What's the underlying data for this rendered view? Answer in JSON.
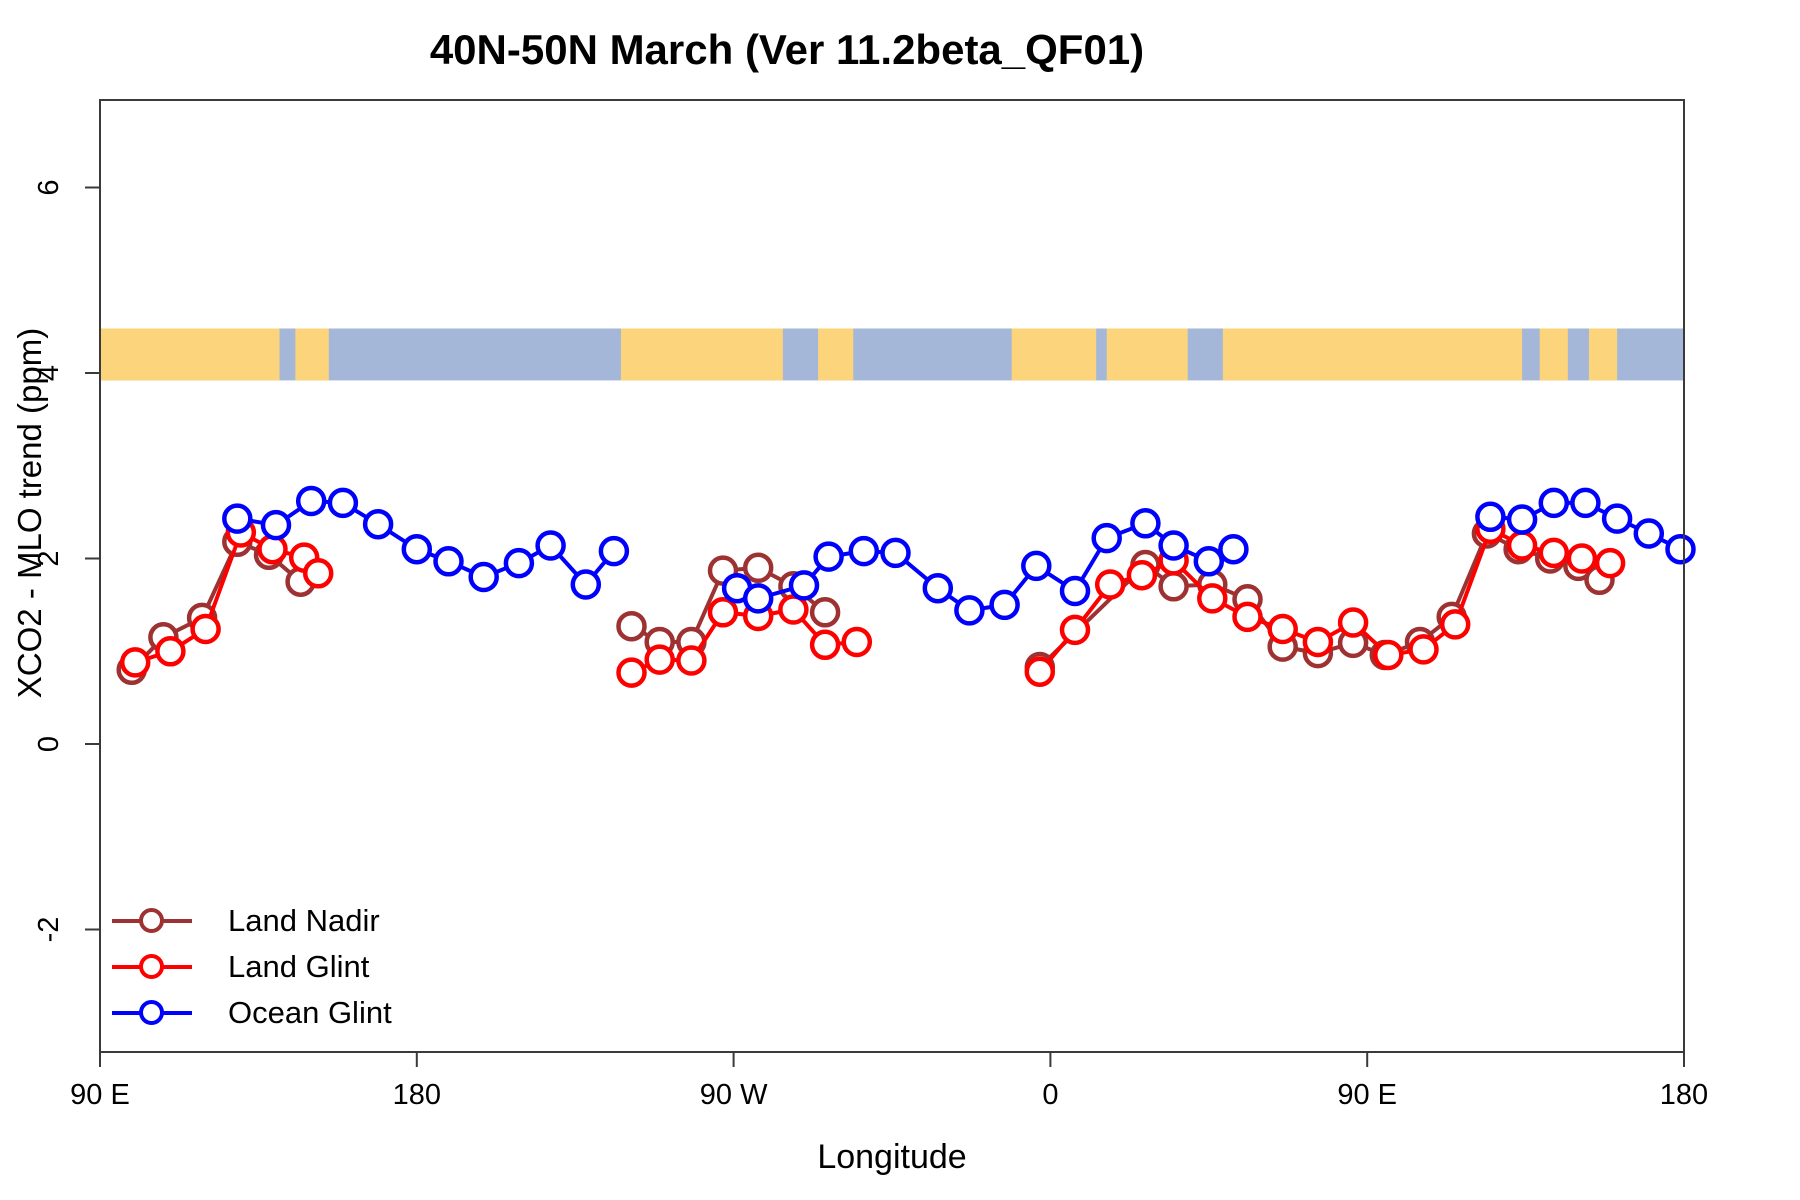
{
  "title": "40N-50N March (Ver 11.2beta_QF01)",
  "chart_data": {
    "type": "line",
    "title": "40N-50N March (Ver 11.2beta_QF01)",
    "xlabel": "Longitude",
    "ylabel": "XCO2 - MLO trend (ppm)",
    "grid": false,
    "legend_position": "bottom-left-inside",
    "x_axis": {
      "range_unwrapped_deg": [
        90,
        540
      ],
      "ticks": [
        {
          "lon": 90,
          "label": "90 E"
        },
        {
          "lon": 180,
          "label": "180"
        },
        {
          "lon": 270,
          "label": "90 W"
        },
        {
          "lon": 360,
          "label": "0"
        },
        {
          "lon": 450,
          "label": "90 E"
        },
        {
          "lon": 540,
          "label": "180"
        }
      ]
    },
    "y_axis": {
      "range": [
        -3.3,
        6.9
      ],
      "ticks": [
        {
          "value": -2,
          "label": "-2"
        },
        {
          "value": 0,
          "label": "0"
        },
        {
          "value": 2,
          "label": "2"
        },
        {
          "value": 4,
          "label": "4"
        },
        {
          "value": 6,
          "label": "6"
        }
      ]
    },
    "map_band": {
      "description": "world coastline strip for 40N-50N drawn across the top of the plot",
      "value_range": [
        3.92,
        4.48
      ],
      "ocean_color": "#A4B7D9",
      "land_color": "#FCD47C",
      "land_segments_lon": [
        [
          90,
          141
        ],
        [
          145.5,
          155
        ],
        [
          238,
          284
        ],
        [
          294,
          304
        ],
        [
          349,
          373
        ],
        [
          376,
          399
        ],
        [
          409,
          494
        ],
        [
          499,
          507
        ],
        [
          513,
          521
        ]
      ]
    },
    "series": [
      {
        "name": "Land Nadir",
        "color": "#9E3232",
        "clusters": [
          [
            [
              99,
              0.8
            ],
            [
              108,
              1.15
            ],
            [
              119,
              1.36
            ],
            [
              129,
              2.18
            ],
            [
              138,
              2.04
            ],
            [
              147,
              1.75
            ]
          ],
          [
            [
              241,
              1.27
            ],
            [
              249,
              1.1
            ],
            [
              258,
              1.1
            ],
            [
              267,
              1.87
            ],
            [
              277,
              1.9
            ],
            [
              287,
              1.7
            ],
            [
              296,
              1.42
            ]
          ],
          [
            [
              357,
              0.83
            ],
            [
              387,
              1.93
            ],
            [
              395,
              1.7
            ],
            [
              406,
              1.72
            ],
            [
              416,
              1.56
            ],
            [
              426,
              1.05
            ],
            [
              436,
              0.98
            ],
            [
              446,
              1.09
            ],
            [
              455,
              0.96
            ],
            [
              465,
              1.1
            ],
            [
              474,
              1.37
            ],
            [
              484,
              2.27
            ],
            [
              493,
              2.1
            ],
            [
              502,
              2.0
            ],
            [
              510,
              1.92
            ],
            [
              516,
              1.77
            ]
          ]
        ]
      },
      {
        "name": "Land Glint",
        "color": "#FF0000",
        "clusters": [
          [
            [
              100,
              0.88
            ],
            [
              110,
              1.0
            ],
            [
              120,
              1.24
            ],
            [
              130,
              2.28
            ],
            [
              139,
              2.1
            ],
            [
              148,
              2.01
            ],
            [
              152,
              1.84
            ]
          ],
          [
            [
              241,
              0.77
            ],
            [
              249,
              0.91
            ],
            [
              258,
              0.9
            ],
            [
              267,
              1.42
            ],
            [
              277,
              1.38
            ],
            [
              287,
              1.45
            ],
            [
              296,
              1.07
            ],
            [
              305,
              1.1
            ]
          ],
          [
            [
              357,
              0.78
            ],
            [
              367,
              1.23
            ],
            [
              377,
              1.72
            ],
            [
              386,
              1.82
            ],
            [
              395,
              1.98
            ],
            [
              406,
              1.57
            ],
            [
              416,
              1.37
            ],
            [
              426,
              1.24
            ],
            [
              436,
              1.1
            ],
            [
              446,
              1.31
            ],
            [
              456,
              0.96
            ],
            [
              466,
              1.02
            ],
            [
              475,
              1.29
            ],
            [
              485,
              2.32
            ],
            [
              494,
              2.14
            ],
            [
              503,
              2.06
            ],
            [
              511,
              2.0
            ],
            [
              519,
              1.95
            ]
          ]
        ]
      },
      {
        "name": "Ocean Glint",
        "color": "#0000FF",
        "clusters": [
          [
            [
              129,
              2.43
            ],
            [
              140,
              2.36
            ],
            [
              150,
              2.62
            ],
            [
              159,
              2.6
            ],
            [
              169,
              2.37
            ],
            [
              180,
              2.1
            ],
            [
              189,
              1.97
            ],
            [
              199,
              1.8
            ],
            [
              209,
              1.95
            ],
            [
              218,
              2.14
            ],
            [
              228,
              1.72
            ],
            [
              236,
              2.08
            ]
          ],
          [
            [
              271,
              1.68
            ],
            [
              277,
              1.57
            ],
            [
              290,
              1.71
            ],
            [
              297,
              2.02
            ],
            [
              307,
              2.08
            ],
            [
              316,
              2.06
            ],
            [
              328,
              1.68
            ],
            [
              337,
              1.44
            ],
            [
              347,
              1.5
            ],
            [
              356,
              1.92
            ],
            [
              367,
              1.65
            ],
            [
              376,
              2.22
            ],
            [
              387,
              2.38
            ],
            [
              395,
              2.14
            ],
            [
              405,
              1.97
            ],
            [
              412,
              2.1
            ]
          ],
          [
            [
              485,
              2.45
            ],
            [
              494,
              2.42
            ],
            [
              503,
              2.6
            ],
            [
              512,
              2.6
            ],
            [
              521,
              2.43
            ],
            [
              530,
              2.27
            ],
            [
              539,
              2.1
            ]
          ]
        ]
      }
    ],
    "style": {
      "axis_color": "#3a3a3a",
      "marker_radius": 13,
      "marker_stroke_width": 4.5,
      "line_width": 4
    }
  }
}
